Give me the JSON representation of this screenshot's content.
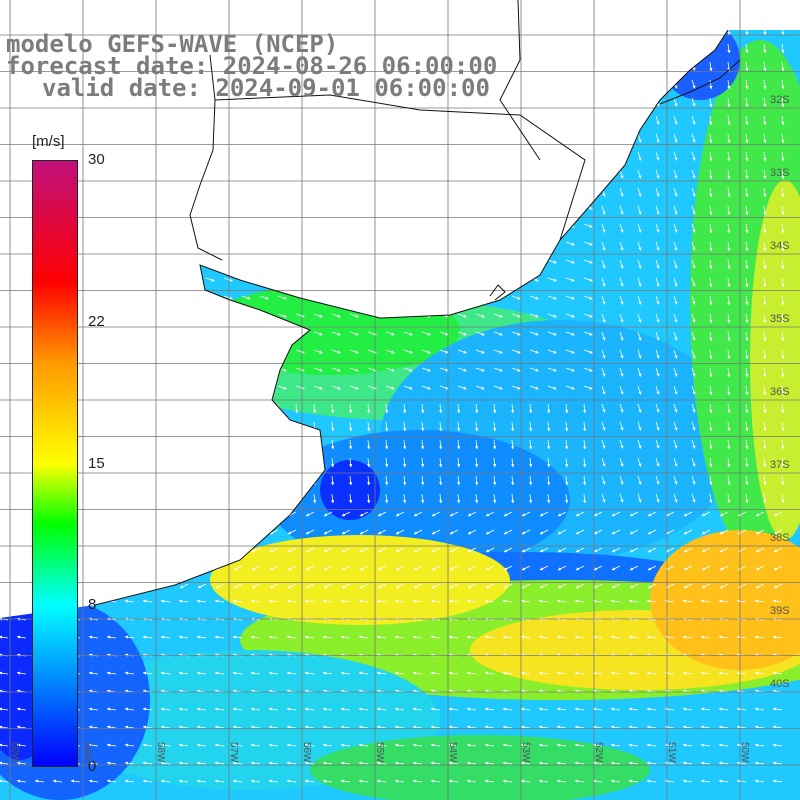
{
  "title": {
    "line1": "modelo GEFS-WAVE (NCEP)",
    "line2": "forecast date: 2024-08-26 06:00:00",
    "line3": "valid date: 2024-09-01 06:00:00"
  },
  "colorbar": {
    "unit": "[m/s]",
    "min": 0,
    "max": 30,
    "colors": [
      "#0000ff",
      "#00a0ff",
      "#00ffff",
      "#00ff00",
      "#ffff00",
      "#ff9900",
      "#ff0000",
      "#c0107c"
    ],
    "stops": [
      0,
      5,
      8,
      12,
      15,
      20,
      24,
      30
    ],
    "ticks": [
      {
        "value": 30,
        "label": "30"
      },
      {
        "value": 22,
        "label": "22"
      },
      {
        "value": 15,
        "label": "15"
      },
      {
        "value": 8,
        "label": "8"
      },
      {
        "value": 0,
        "label": "0"
      }
    ]
  },
  "map": {
    "lat_labels": [
      "32S",
      "33S",
      "34S",
      "35S",
      "36S",
      "37S",
      "38S",
      "39S",
      "40S"
    ],
    "lon_labels": [
      "60W",
      "59W",
      "58W",
      "57W",
      "56W",
      "55W",
      "54W",
      "53W",
      "52W",
      "51W",
      "50W"
    ]
  }
}
